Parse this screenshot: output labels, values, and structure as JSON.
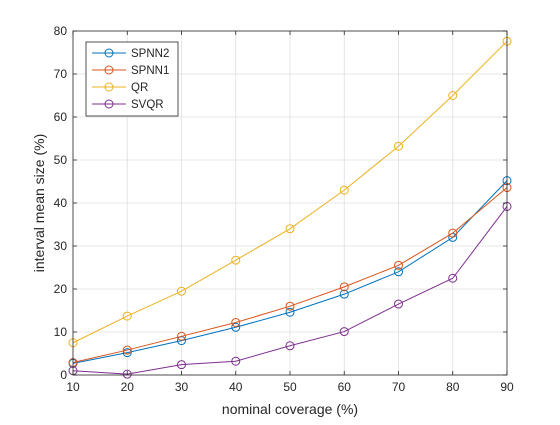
{
  "chart_data": {
    "type": "line",
    "title": "",
    "xlabel": "nominal coverage (%)",
    "ylabel": "interval mean size (%)",
    "x": [
      10,
      20,
      30,
      40,
      50,
      60,
      70,
      80,
      90
    ],
    "xlim": [
      10,
      90
    ],
    "ylim": [
      0,
      80
    ],
    "xticks": [
      10,
      20,
      30,
      40,
      50,
      60,
      70,
      80,
      90
    ],
    "yticks": [
      0,
      10,
      20,
      30,
      40,
      50,
      60,
      70,
      80
    ],
    "grid": true,
    "legend_position": "top-left",
    "marker": "circle-open",
    "series": [
      {
        "name": "SPNN2",
        "color": "#0072BD",
        "values": [
          2.7,
          5.2,
          8.0,
          11.1,
          14.6,
          18.8,
          24.0,
          32.0,
          45.2
        ]
      },
      {
        "name": "SPNN1",
        "color": "#D95319",
        "values": [
          2.9,
          5.8,
          9.0,
          12.2,
          16.0,
          20.5,
          25.5,
          33.0,
          43.6
        ]
      },
      {
        "name": "QR",
        "color": "#EDB120",
        "values": [
          7.5,
          13.7,
          19.5,
          26.7,
          34.0,
          43.0,
          53.2,
          65.0,
          77.6
        ]
      },
      {
        "name": "SVQR",
        "color": "#7E2F8E",
        "values": [
          1.0,
          0.2,
          2.4,
          3.2,
          6.8,
          10.1,
          16.5,
          22.5,
          39.2
        ]
      }
    ]
  }
}
